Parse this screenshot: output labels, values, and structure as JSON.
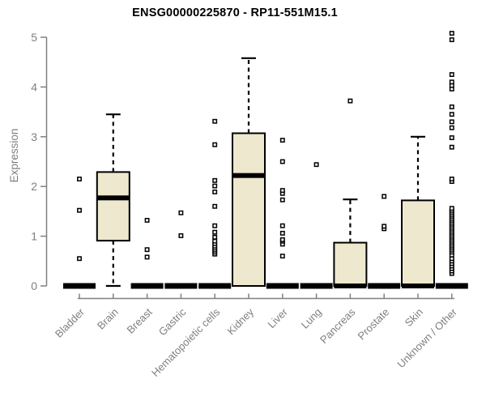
{
  "chart_data": {
    "type": "boxplot",
    "title": "ENSG00000225870 - RP11-551M15.1",
    "ylabel": "Expression",
    "xlabel": "",
    "ylim": [
      0,
      5
    ],
    "yticks": [
      0,
      1,
      2,
      3,
      4,
      5
    ],
    "grid": false,
    "legend": "none",
    "categories": [
      "Bladder",
      "Brain",
      "Breast",
      "Gastric",
      "Hematopoietic cells",
      "Kidney",
      "Liver",
      "Lung",
      "Pancreas",
      "Prostate",
      "Skin",
      "Unknown / Other"
    ],
    "series": [
      {
        "name": "Bladder",
        "low": 0,
        "q1": 0,
        "median": 0,
        "q3": 0,
        "high": 0,
        "outliers": [
          0.55,
          1.52,
          2.15
        ]
      },
      {
        "name": "Brain",
        "low": 0,
        "q1": 0.91,
        "median": 1.77,
        "q3": 2.29,
        "high": 3.45,
        "outliers": []
      },
      {
        "name": "Breast",
        "low": 0,
        "q1": 0,
        "median": 0,
        "q3": 0,
        "high": 0,
        "outliers": [
          0.58,
          0.73,
          1.32
        ]
      },
      {
        "name": "Gastric",
        "low": 0,
        "q1": 0,
        "median": 0,
        "q3": 0,
        "high": 0,
        "outliers": [
          1.01,
          1.47
        ]
      },
      {
        "name": "Hematopoietic cells",
        "low": 0,
        "q1": 0,
        "median": 0,
        "q3": 0,
        "high": 0,
        "outliers": [
          0.64,
          0.68,
          0.72,
          0.76,
          0.8,
          0.85,
          0.9,
          0.98,
          1.08,
          1.21,
          1.6,
          1.89,
          2.01,
          2.12,
          2.84,
          3.31
        ]
      },
      {
        "name": "Kidney",
        "low": 0,
        "q1": 0,
        "median": 2.22,
        "q3": 3.07,
        "high": 4.58,
        "outliers": []
      },
      {
        "name": "Liver",
        "low": 0,
        "q1": 0,
        "median": 0,
        "q3": 0,
        "high": 0,
        "outliers": [
          0.6,
          0.84,
          0.9,
          0.93,
          1.06,
          1.21,
          1.73,
          1.86,
          1.92,
          2.5,
          2.93
        ]
      },
      {
        "name": "Lung",
        "low": 0,
        "q1": 0,
        "median": 0,
        "q3": 0,
        "high": 0,
        "outliers": [
          2.44
        ]
      },
      {
        "name": "Pancreas",
        "low": 0,
        "q1": 0,
        "median": 0,
        "q3": 0.87,
        "high": 1.74,
        "outliers": [
          3.72
        ]
      },
      {
        "name": "Prostate",
        "low": 0,
        "q1": 0,
        "median": 0,
        "q3": 0,
        "high": 0,
        "outliers": [
          1.15,
          1.2,
          1.8
        ]
      },
      {
        "name": "Skin",
        "low": 0,
        "q1": 0,
        "median": 0,
        "q3": 1.72,
        "high": 3.0,
        "outliers": []
      },
      {
        "name": "Unknown / Other",
        "low": 0,
        "q1": 0,
        "median": 0,
        "q3": 0,
        "high": 0,
        "outliers": [
          0.25,
          0.3,
          0.35,
          0.4,
          0.45,
          0.5,
          0.55,
          0.62,
          0.68,
          0.72,
          0.76,
          0.8,
          0.84,
          0.88,
          0.92,
          0.96,
          1.0,
          1.04,
          1.08,
          1.12,
          1.16,
          1.2,
          1.24,
          1.28,
          1.32,
          1.36,
          1.4,
          1.44,
          1.48,
          1.52,
          1.56,
          2.1,
          2.15,
          2.79,
          2.98,
          3.18,
          3.3,
          3.45,
          3.6,
          3.96,
          4.03,
          4.1,
          4.25,
          4.95,
          5.08
        ]
      }
    ],
    "colors": {
      "box_fill": "#EDE8CE",
      "box_stroke": "#000000",
      "median": "#000000",
      "whisker": "#000000",
      "outlier_stroke": "#000000",
      "outlier_fill": "#ffffff",
      "axis": "#808080",
      "tick_label": "#7f7f7f",
      "title": "#000000"
    }
  }
}
